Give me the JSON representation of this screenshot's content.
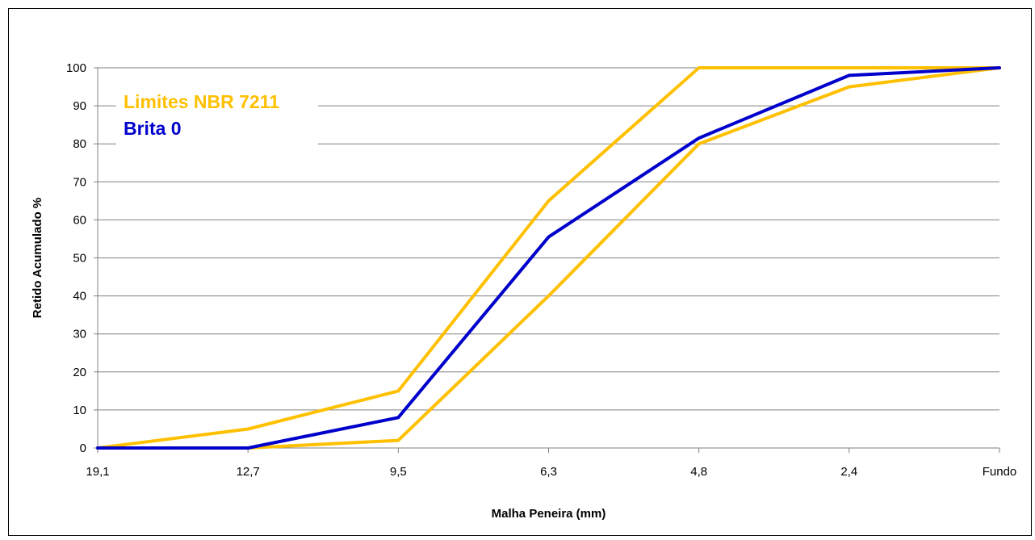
{
  "chart_data": {
    "type": "line",
    "categories": [
      "19,1",
      "12,7",
      "9,5",
      "6,3",
      "4,8",
      "2,4",
      "Fundo"
    ],
    "series": [
      {
        "name": "Limites NBR 7211",
        "role": "upper",
        "values": [
          0,
          5,
          15,
          65,
          100,
          100,
          100
        ],
        "color": "#FFC000"
      },
      {
        "name": "",
        "role": "lower",
        "values": [
          0,
          0,
          2,
          40,
          80,
          95,
          100
        ],
        "color": "#FFC000"
      },
      {
        "name": "Brita 0",
        "role": "sample",
        "values": [
          0,
          0,
          8,
          55.5,
          81.5,
          98,
          100
        ],
        "color": "#0000CC"
      }
    ],
    "legend": [
      {
        "label": "Limites NBR 7211",
        "color": "#FFC000"
      },
      {
        "label": "Brita 0",
        "color": "#0000CC"
      }
    ],
    "xlabel": "Malha Peneira (mm)",
    "ylabel": "Retido Acumulado %",
    "ylim": [
      0,
      100
    ],
    "yticks": [
      "0",
      "10",
      "20",
      "30",
      "40",
      "50",
      "60",
      "70",
      "80",
      "90",
      "100"
    ],
    "grid": "horizontal",
    "legend_position": "top-left"
  }
}
